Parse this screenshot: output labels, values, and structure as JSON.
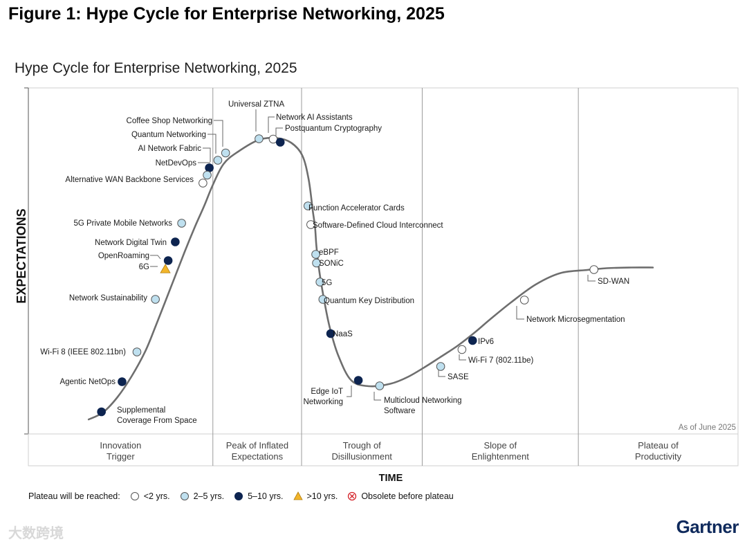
{
  "figure_title": "Figure 1: Hype Cycle for Enterprise Networking, 2025",
  "watermark": "大数跨境",
  "brand": "Gartner",
  "colors": {
    "lt2": "#ffffff",
    "2to5": "#bfe0ef",
    "5to10": "#0d2450",
    "gt10": "#f2b52a",
    "curve": "#6e6e6e",
    "stroke": "#555555"
  },
  "chart_data": {
    "type": "hype-cycle",
    "title": "Hype Cycle for Enterprise Networking, 2025",
    "xlabel": "TIME",
    "ylabel": "EXPECTATIONS",
    "as_of": "As of June 2025",
    "phases": [
      {
        "line1": "Innovation",
        "line2": "Trigger",
        "start": 0,
        "end": 26
      },
      {
        "line1": "Peak of Inflated",
        "line2": "Expectations",
        "start": 26,
        "end": 38.5
      },
      {
        "line1": "Trough of",
        "line2": "Disillusionment",
        "start": 38.5,
        "end": 55.5
      },
      {
        "line1": "Slope of",
        "line2": "Enlightenment",
        "start": 55.5,
        "end": 77.5
      },
      {
        "line1": "Plateau of",
        "line2": "Productivity",
        "start": 77.5,
        "end": 100
      }
    ],
    "legend": {
      "title": "Plateau will be reached:",
      "items": [
        {
          "key": "lt2",
          "label": "<2 yrs."
        },
        {
          "key": "2to5",
          "label": "2–5 yrs."
        },
        {
          "key": "5to10",
          "label": "5–10 yrs."
        },
        {
          "key": "gt10",
          "label": ">10 yrs."
        },
        {
          "key": "obsolete",
          "label": "Obsolete before plateau"
        }
      ]
    },
    "curve": [
      [
        8.5,
        4.2
      ],
      [
        10.5,
        6.2
      ],
      [
        12.5,
        10.5
      ],
      [
        14.5,
        16.5
      ],
      [
        16.5,
        24
      ],
      [
        18,
        31.5
      ],
      [
        20.1,
        42.5
      ],
      [
        22,
        52.5
      ],
      [
        23.5,
        60
      ],
      [
        24.8,
        66
      ],
      [
        26,
        72
      ],
      [
        27.5,
        78
      ],
      [
        29.5,
        81.5
      ],
      [
        32.5,
        85
      ],
      [
        35,
        85.5
      ],
      [
        37,
        84.2
      ],
      [
        38.6,
        80.5
      ],
      [
        39.5,
        73.5
      ],
      [
        40.1,
        64.2
      ],
      [
        40.4,
        59.7
      ],
      [
        40.6,
        54
      ],
      [
        41,
        47
      ],
      [
        41.7,
        38.5
      ],
      [
        42.5,
        30.5
      ],
      [
        43.7,
        22.5
      ],
      [
        45.5,
        15.5
      ],
      [
        48,
        13.8
      ],
      [
        51,
        14.5
      ],
      [
        53.5,
        16.5
      ],
      [
        56,
        19.5
      ],
      [
        58.2,
        22.4
      ],
      [
        60.5,
        25.5
      ],
      [
        63,
        29.5
      ],
      [
        65,
        33
      ],
      [
        68,
        38
      ],
      [
        71.5,
        43.2
      ],
      [
        75,
        46.5
      ],
      [
        78.8,
        47.4
      ],
      [
        81.5,
        47.9
      ],
      [
        85,
        48.1
      ],
      [
        88,
        48.1
      ]
    ],
    "points": [
      {
        "name": "Supplemental\nCoverage From Space",
        "t": 10.3,
        "e": 6.4,
        "cat": "5to10"
      },
      {
        "name": "Agentic NetOps",
        "t": 13.2,
        "e": 15.1,
        "cat": "5to10"
      },
      {
        "name": "Wi-Fi 8 (IEEE 802.11bn)",
        "t": 15.3,
        "e": 23.7,
        "cat": "2to5"
      },
      {
        "name": "Network Sustainability",
        "t": 17.9,
        "e": 38.9,
        "cat": "2to5"
      },
      {
        "name": "6G",
        "t": 19.3,
        "e": 47.6,
        "cat": "gt10"
      },
      {
        "name": "OpenRoaming",
        "t": 19.7,
        "e": 50.1,
        "cat": "5to10"
      },
      {
        "name": "Network Digital Twin",
        "t": 20.7,
        "e": 55.5,
        "cat": "5to10"
      },
      {
        "name": "5G Private Mobile Networks",
        "t": 21.6,
        "e": 60.9,
        "cat": "2to5"
      },
      {
        "name": "Alternative WAN Backbone Services",
        "t": 24.6,
        "e": 72.5,
        "cat": "lt2"
      },
      {
        "name": "NetDevOps",
        "t": 25.5,
        "e": 76.9,
        "cat": "5to10"
      },
      {
        "name": "AI Network Fabric",
        "t": 25.2,
        "e": 74.8,
        "cat": "2to5"
      },
      {
        "name": "Quantum Networking",
        "t": 26.7,
        "e": 79.1,
        "cat": "2to5"
      },
      {
        "name": "Coffee Shop Networking",
        "t": 27.8,
        "e": 81.2,
        "cat": "2to5"
      },
      {
        "name": "Universal ZTNA",
        "t": 32.5,
        "e": 85.3,
        "cat": "2to5"
      },
      {
        "name": "Network AI Assistants",
        "t": 34.5,
        "e": 85.2,
        "cat": "lt2"
      },
      {
        "name": "Postquantum Cryptography",
        "t": 35.5,
        "e": 84.3,
        "cat": "5to10"
      },
      {
        "name": "Function Accelerator Cards",
        "t": 39.4,
        "e": 65.9,
        "cat": "2to5"
      },
      {
        "name": "Software-Defined Cloud Interconnect",
        "t": 39.8,
        "e": 60.5,
        "cat": "lt2"
      },
      {
        "name": "eBPF",
        "t": 40.5,
        "e": 51.9,
        "cat": "2to5"
      },
      {
        "name": "SONiC",
        "t": 40.6,
        "e": 49.4,
        "cat": "2to5"
      },
      {
        "name": "5G",
        "t": 41.1,
        "e": 43.9,
        "cat": "2to5"
      },
      {
        "name": "Quantum Key Distribution",
        "t": 41.5,
        "e": 38.9,
        "cat": "2to5"
      },
      {
        "name": "NaaS",
        "t": 42.6,
        "e": 29.0,
        "cat": "5to10"
      },
      {
        "name": "Edge IoT\nNetworking",
        "t": 46.5,
        "e": 15.5,
        "cat": "5to10"
      },
      {
        "name": "Multicloud Networking\nSoftware",
        "t": 49.5,
        "e": 13.9,
        "cat": "2to5"
      },
      {
        "name": "SASE",
        "t": 58.1,
        "e": 19.5,
        "cat": "2to5"
      },
      {
        "name": "Wi-Fi 7 (802.11be)",
        "t": 61.1,
        "e": 24.4,
        "cat": "lt2"
      },
      {
        "name": "IPv6",
        "t": 62.6,
        "e": 27.0,
        "cat": "5to10"
      },
      {
        "name": "Network Microsegmentation",
        "t": 69.9,
        "e": 38.7,
        "cat": "lt2"
      },
      {
        "name": "SD-WAN",
        "t": 79.7,
        "e": 47.5,
        "cat": "lt2"
      }
    ]
  }
}
